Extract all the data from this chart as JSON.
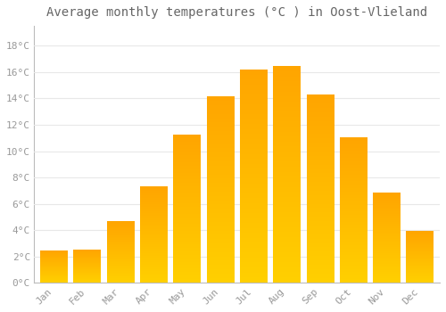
{
  "months": [
    "Jan",
    "Feb",
    "Mar",
    "Apr",
    "May",
    "Jun",
    "Jul",
    "Aug",
    "Sep",
    "Oct",
    "Nov",
    "Dec"
  ],
  "values": [
    2.4,
    2.5,
    4.6,
    7.3,
    11.2,
    14.1,
    16.1,
    16.4,
    14.2,
    11.0,
    6.8,
    3.9
  ],
  "bar_color_top": "#FFA500",
  "bar_color_bottom": "#FFD000",
  "background_color": "#FFFFFF",
  "grid_color": "#E8E8E8",
  "title": "Average monthly temperatures (°C ) in Oost-Vlieland",
  "title_fontsize": 10,
  "yticks": [
    0,
    2,
    4,
    6,
    8,
    10,
    12,
    14,
    16,
    18
  ],
  "ylim": [
    0,
    19.5
  ],
  "tick_label_color": "#999999",
  "title_color": "#666666",
  "font_family": "monospace",
  "bar_width": 0.82
}
